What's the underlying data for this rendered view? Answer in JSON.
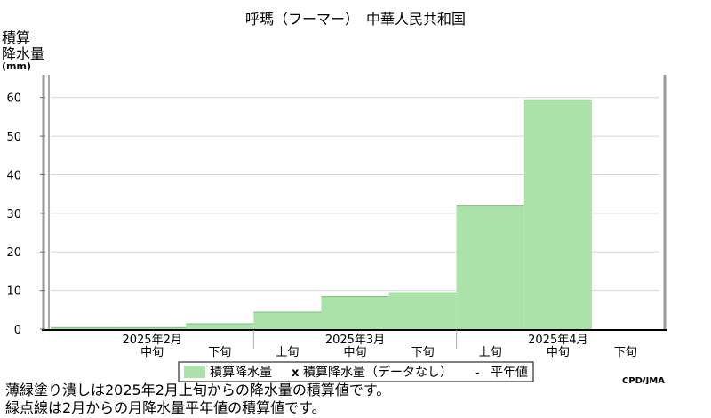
{
  "chart_data": {
    "type": "bar",
    "title": "呼瑪（フーマー）　中華人民共和国",
    "ylabel": [
      "積算",
      "降水量",
      "(mm)"
    ],
    "ylim": [
      0,
      65
    ],
    "yticks": [
      0,
      10,
      20,
      30,
      40,
      50,
      60
    ],
    "grid": true,
    "categories": [
      "上旬",
      "中旬",
      "下旬",
      "上旬",
      "中旬",
      "下旬",
      "上旬",
      "中旬",
      "下旬"
    ],
    "x_display": [
      "",
      "中旬",
      "下旬",
      "上旬",
      "中旬",
      "下旬",
      "上旬",
      "中旬",
      "下旬"
    ],
    "month_groups": [
      {
        "label": "2025年2月",
        "start": 0,
        "end": 3
      },
      {
        "label": "2025年3月",
        "start": 3,
        "end": 6
      },
      {
        "label": "2025年4月",
        "start": 6,
        "end": 9
      }
    ],
    "series": [
      {
        "name": "積算降水量",
        "color": "#abe2aa",
        "values": [
          0.5,
          0.5,
          1.5,
          4.5,
          8.5,
          9.5,
          32,
          59.5,
          null
        ]
      }
    ],
    "legend": {
      "placement": "bottom",
      "items": [
        "積算降水量",
        "積算降水量（データなし）",
        "平年値"
      ],
      "no_data_mark": "x",
      "normal_mark": "-"
    },
    "credit": "CPD/JMA"
  },
  "notes": [
    "薄緑塗り潰しは2025年2月上旬からの降水量の積算値です。",
    "緑点線は2月からの月降水量平年値の積算値です。"
  ]
}
